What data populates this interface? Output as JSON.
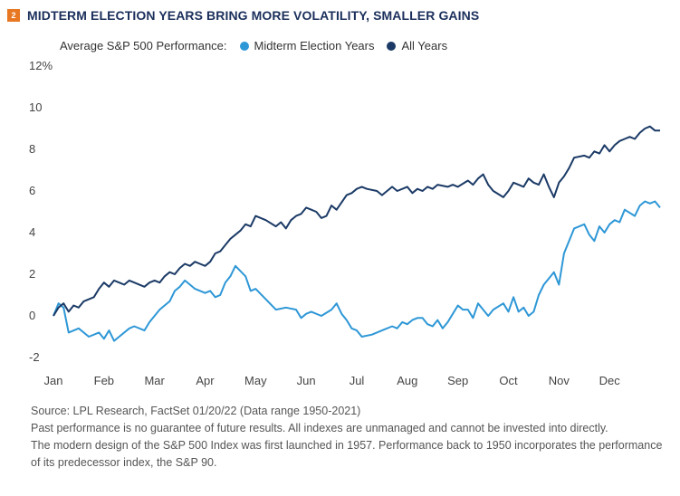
{
  "header": {
    "badge": "2",
    "title": "MIDTERM ELECTION YEARS BRING MORE VOLATILITY, SMALLER GAINS"
  },
  "legend": {
    "prefix": "Average S&P 500 Performance:",
    "items": [
      {
        "label": "Midterm Election Years",
        "color": "#2e97d6"
      },
      {
        "label": "All Years",
        "color": "#1b3a66"
      }
    ]
  },
  "footer": {
    "source": "Source: LPL Research, FactSet 01/20/22 (Data range 1950-2021)",
    "disclaimer": "Past performance is no guarantee of future results. All indexes are unmanaged and cannot be invested into directly.",
    "note": "The modern design of the S&P 500 Index was first launched in 1957. Performance back to 1950 incorporates the performance of its predecessor index, the S&P 90."
  },
  "chart_data": {
    "type": "line",
    "title": "MIDTERM ELECTION YEARS BRING MORE VOLATILITY, SMALLER GAINS",
    "xlabel": "",
    "ylabel": "",
    "x_tick_labels": [
      "Jan",
      "Feb",
      "Mar",
      "Apr",
      "May",
      "Jun",
      "Jul",
      "Aug",
      "Sep",
      "Oct",
      "Nov",
      "Dec"
    ],
    "y_tick_labels": [
      "12%",
      "10",
      "8",
      "6",
      "4",
      "2",
      "0",
      "-2"
    ],
    "y_tick_values": [
      12,
      10,
      8,
      6,
      4,
      2,
      0,
      -2
    ],
    "ylim": [
      -2,
      12
    ],
    "xlim": [
      0,
      12
    ],
    "grid": false,
    "legend_position": "top",
    "series": [
      {
        "name": "Midterm Election Years",
        "color": "#2e97d6",
        "x": [
          0,
          0.1,
          0.2,
          0.3,
          0.5,
          0.7,
          0.9,
          1.0,
          1.1,
          1.2,
          1.3,
          1.5,
          1.6,
          1.8,
          1.9,
          2.0,
          2.1,
          2.2,
          2.3,
          2.4,
          2.5,
          2.6,
          2.7,
          2.8,
          3.0,
          3.1,
          3.2,
          3.3,
          3.4,
          3.5,
          3.6,
          3.8,
          3.9,
          4.0,
          4.2,
          4.4,
          4.6,
          4.8,
          4.9,
          5.0,
          5.1,
          5.3,
          5.5,
          5.6,
          5.7,
          5.8,
          5.9,
          6.0,
          6.1,
          6.3,
          6.5,
          6.7,
          6.8,
          6.9,
          7.0,
          7.1,
          7.2,
          7.3,
          7.4,
          7.5,
          7.6,
          7.7,
          7.8,
          7.9,
          8.0,
          8.1,
          8.2,
          8.3,
          8.4,
          8.6,
          8.7,
          8.9,
          9.0,
          9.1,
          9.2,
          9.3,
          9.4,
          9.5,
          9.6,
          9.7,
          9.8,
          9.9,
          10.0,
          10.1,
          10.3,
          10.5,
          10.6,
          10.7,
          10.8,
          10.9,
          11.0,
          11.1,
          11.2,
          11.3,
          11.5,
          11.6,
          11.7,
          11.8,
          11.9,
          12.0
        ],
        "y": [
          0.0,
          0.6,
          0.4,
          -0.8,
          -0.6,
          -1.0,
          -0.8,
          -1.1,
          -0.7,
          -1.2,
          -1.0,
          -0.6,
          -0.5,
          -0.7,
          -0.3,
          0.0,
          0.3,
          0.5,
          0.7,
          1.2,
          1.4,
          1.7,
          1.5,
          1.3,
          1.1,
          1.2,
          0.9,
          1.0,
          1.6,
          1.9,
          2.4,
          1.9,
          1.2,
          1.3,
          0.8,
          0.3,
          0.4,
          0.3,
          -0.1,
          0.1,
          0.2,
          0.0,
          0.3,
          0.6,
          0.1,
          -0.2,
          -0.6,
          -0.7,
          -1.0,
          -0.9,
          -0.7,
          -0.5,
          -0.6,
          -0.3,
          -0.4,
          -0.2,
          -0.1,
          -0.1,
          -0.4,
          -0.5,
          -0.2,
          -0.6,
          -0.3,
          0.1,
          0.5,
          0.3,
          0.3,
          -0.1,
          0.6,
          0.0,
          0.3,
          0.6,
          0.2,
          0.9,
          0.2,
          0.4,
          0.0,
          0.2,
          1.0,
          1.5,
          1.8,
          2.1,
          1.5,
          3.0,
          4.2,
          4.4,
          3.9,
          3.6,
          4.3,
          4.0,
          4.4,
          4.6,
          4.5,
          5.1,
          4.8,
          5.3,
          5.5,
          5.4,
          5.5,
          5.2
        ]
      },
      {
        "name": "All Years",
        "color": "#1b3a66",
        "x": [
          0,
          0.1,
          0.2,
          0.3,
          0.4,
          0.5,
          0.6,
          0.8,
          0.9,
          1.0,
          1.1,
          1.2,
          1.3,
          1.4,
          1.5,
          1.6,
          1.8,
          1.9,
          2.0,
          2.1,
          2.2,
          2.3,
          2.4,
          2.5,
          2.6,
          2.7,
          2.8,
          2.9,
          3.0,
          3.1,
          3.2,
          3.3,
          3.4,
          3.5,
          3.6,
          3.7,
          3.8,
          3.9,
          4.0,
          4.2,
          4.4,
          4.5,
          4.6,
          4.7,
          4.8,
          4.9,
          5.0,
          5.1,
          5.2,
          5.3,
          5.4,
          5.5,
          5.6,
          5.8,
          5.9,
          6.0,
          6.1,
          6.2,
          6.4,
          6.5,
          6.6,
          6.7,
          6.8,
          7.0,
          7.1,
          7.2,
          7.3,
          7.4,
          7.5,
          7.6,
          7.8,
          7.9,
          8.0,
          8.2,
          8.3,
          8.4,
          8.5,
          8.6,
          8.7,
          8.9,
          9.0,
          9.1,
          9.2,
          9.3,
          9.4,
          9.5,
          9.6,
          9.7,
          9.8,
          9.9,
          10.0,
          10.1,
          10.2,
          10.3,
          10.5,
          10.6,
          10.7,
          10.8,
          10.9,
          11.0,
          11.1,
          11.2,
          11.3,
          11.4,
          11.5,
          11.6,
          11.7,
          11.8,
          11.9,
          12.0
        ],
        "y": [
          0.0,
          0.4,
          0.6,
          0.2,
          0.5,
          0.4,
          0.7,
          0.9,
          1.3,
          1.6,
          1.4,
          1.7,
          1.6,
          1.5,
          1.7,
          1.6,
          1.4,
          1.6,
          1.7,
          1.6,
          1.9,
          2.1,
          2.0,
          2.3,
          2.5,
          2.4,
          2.6,
          2.5,
          2.4,
          2.6,
          3.0,
          3.1,
          3.4,
          3.7,
          3.9,
          4.1,
          4.4,
          4.3,
          4.8,
          4.6,
          4.3,
          4.5,
          4.2,
          4.6,
          4.8,
          4.9,
          5.2,
          5.1,
          5.0,
          4.7,
          4.8,
          5.3,
          5.1,
          5.8,
          5.9,
          6.1,
          6.2,
          6.1,
          6.0,
          5.8,
          6.0,
          6.2,
          6.0,
          6.2,
          5.9,
          6.1,
          6.0,
          6.2,
          6.1,
          6.3,
          6.2,
          6.3,
          6.2,
          6.5,
          6.3,
          6.6,
          6.8,
          6.3,
          6.0,
          5.7,
          6.0,
          6.4,
          6.3,
          6.2,
          6.6,
          6.4,
          6.3,
          6.8,
          6.2,
          5.7,
          6.4,
          6.7,
          7.1,
          7.6,
          7.7,
          7.6,
          7.9,
          7.8,
          8.2,
          7.9,
          8.2,
          8.4,
          8.5,
          8.6,
          8.5,
          8.8,
          9.0,
          9.1,
          8.9,
          8.9
        ]
      }
    ]
  }
}
